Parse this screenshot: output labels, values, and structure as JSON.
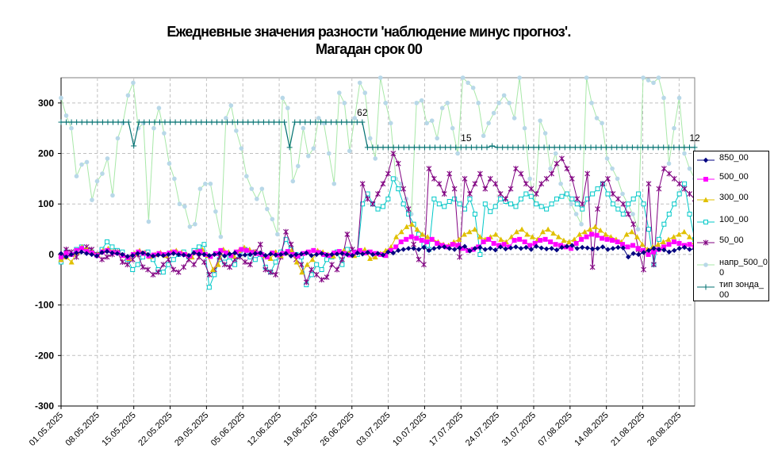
{
  "title_line1": "Ежедневные значения разности 'наблюдение минус прогноз'.",
  "title_line2": "Магадан    срок 00",
  "chart_data": {
    "type": "line",
    "ylim": [
      -300,
      350
    ],
    "yticks": [
      -300,
      -200,
      -100,
      0,
      100,
      200,
      300
    ],
    "grid": true,
    "legend_position": "right",
    "x_start": "2025-05-01",
    "x_end": "2025-08-31",
    "xtick_labels": [
      "01.05.2025",
      "08.05.2025",
      "15.05.2025",
      "22.05.2025",
      "29.05.2025",
      "05.06.2025",
      "12.06.2025",
      "19.06.2025",
      "26.06.2025",
      "03.07.2025",
      "10.07.2025",
      "17.07.2025",
      "24.07.2025",
      "31.07.2025",
      "07.08.2025",
      "14.08.2025",
      "21.08.2025",
      "28.08.2025"
    ],
    "annotations": [
      {
        "text": "62",
        "x": "2025-06-28",
        "y": 262
      },
      {
        "text": "15",
        "x": "2025-07-18",
        "y": 212
      },
      {
        "text": "12",
        "x": "2025-08-31",
        "y": 212
      }
    ],
    "series": [
      {
        "name": "850_00",
        "color": "#000080",
        "marker": "diamond",
        "values": [
          2,
          -5,
          0,
          3,
          5,
          2,
          0,
          -3,
          4,
          6,
          3,
          2,
          0,
          -4,
          -2,
          2,
          3,
          0,
          -3,
          -1,
          -2,
          0,
          2,
          0,
          -1,
          -2,
          3,
          1,
          0,
          -2,
          0,
          2,
          -3,
          1,
          3,
          -2,
          -1,
          0,
          2,
          3,
          -2,
          1,
          -1,
          0,
          2,
          -3,
          0,
          1,
          3,
          -2,
          0,
          2,
          -1,
          0,
          1,
          2,
          0,
          -2,
          3,
          1,
          4,
          0,
          2,
          -1,
          5,
          3,
          8,
          10,
          12,
          12,
          10,
          14,
          8,
          12,
          14,
          15,
          12,
          10,
          13,
          16,
          7,
          12,
          14,
          10,
          12,
          9,
          15,
          11,
          13,
          15,
          12,
          14,
          10,
          16,
          13,
          11,
          12,
          9,
          14,
          16,
          18,
          12,
          14,
          13,
          11,
          12,
          15,
          10,
          12,
          14,
          13,
          -5,
          2,
          0,
          4,
          8,
          12,
          10,
          9,
          5,
          8,
          12,
          14,
          10,
          11
        ]
      },
      {
        "name": "500_00",
        "color": "#FF00FF",
        "marker": "square",
        "values": [
          -5,
          2,
          0,
          8,
          12,
          6,
          3,
          -2,
          5,
          8,
          4,
          3,
          -2,
          -6,
          0,
          5,
          2,
          -3,
          -1,
          2,
          0,
          3,
          5,
          2,
          0,
          -3,
          4,
          6,
          0,
          -4,
          2,
          8,
          3,
          -2,
          5,
          10,
          8,
          4,
          2,
          0,
          -5,
          3,
          -1,
          2,
          6,
          0,
          -3,
          2,
          5,
          8,
          4,
          0,
          -2,
          3,
          6,
          2,
          -1,
          4,
          8,
          3,
          5,
          2,
          0,
          -2,
          8,
          15,
          25,
          30,
          35,
          32,
          28,
          25,
          30,
          22,
          18,
          15,
          20,
          18,
          12,
          8,
          10,
          15,
          25,
          30,
          22,
          18,
          20,
          15,
          28,
          30,
          25,
          18,
          22,
          28,
          30,
          25,
          20,
          18,
          15,
          12,
          22,
          30,
          35,
          40,
          38,
          32,
          30,
          28,
          25,
          20,
          15,
          18,
          12,
          8,
          0,
          5,
          10,
          15,
          20,
          25,
          22,
          18,
          20,
          15
        ]
      },
      {
        "name": "300_00",
        "color": "#E0C000",
        "marker": "triangle",
        "values": [
          -10,
          -5,
          -15,
          5,
          15,
          10,
          5,
          0,
          8,
          12,
          6,
          4,
          -2,
          -8,
          2,
          8,
          4,
          -4,
          0,
          4,
          -2,
          6,
          8,
          4,
          0,
          -5,
          6,
          10,
          -2,
          -30,
          -20,
          10,
          5,
          -3,
          8,
          14,
          10,
          5,
          3,
          -2,
          -8,
          5,
          -2,
          3,
          8,
          -15,
          -35,
          -20,
          -10,
          8,
          5,
          0,
          -3,
          5,
          8,
          3,
          -2,
          6,
          10,
          -8,
          -5,
          2,
          8,
          15,
          35,
          45,
          55,
          60,
          50,
          40,
          35,
          30,
          25,
          20,
          18,
          25,
          30,
          40,
          45,
          50,
          35,
          30,
          35,
          40,
          30,
          25,
          35,
          45,
          50,
          40,
          35,
          30,
          45,
          50,
          42,
          35,
          28,
          25,
          30,
          40,
          45,
          50,
          55,
          48,
          40,
          35,
          30,
          25,
          40,
          45,
          35,
          20,
          10,
          15,
          20,
          25,
          30,
          35,
          40,
          45,
          35,
          25
        ]
      },
      {
        "name": "100_00",
        "color": "#00C8C8",
        "marker": "hollow-square",
        "values": [
          -15,
          5,
          0,
          10,
          15,
          8,
          5,
          0,
          10,
          25,
          15,
          8,
          5,
          -10,
          -30,
          -20,
          -5,
          5,
          -10,
          -30,
          -35,
          -20,
          -10,
          0,
          5,
          -5,
          8,
          15,
          20,
          -65,
          -40,
          -10,
          -15,
          -5,
          -20,
          5,
          10,
          -5,
          -10,
          0,
          -25,
          -35,
          -15,
          5,
          30,
          10,
          0,
          -5,
          -60,
          -40,
          -20,
          -30,
          -10,
          -5,
          5,
          -20,
          10,
          5,
          0,
          100,
          120,
          100,
          90,
          95,
          110,
          150,
          130,
          100,
          80,
          60,
          40,
          20,
          10,
          110,
          100,
          95,
          105,
          110,
          100,
          90,
          110,
          80,
          0,
          100,
          85,
          95,
          110,
          105,
          100,
          95,
          110,
          120,
          115,
          100,
          95,
          90,
          100,
          110,
          115,
          120,
          110,
          100,
          90,
          110,
          120,
          130,
          140,
          120,
          100,
          90,
          80,
          100,
          110,
          120,
          100,
          50,
          -20,
          30,
          60,
          80,
          100,
          120,
          140,
          80,
          30
        ]
      },
      {
        "name": "50_00",
        "color": "#800080",
        "marker": "star",
        "values": [
          -10,
          10,
          5,
          -5,
          8,
          15,
          10,
          0,
          -10,
          -5,
          0,
          5,
          -15,
          -20,
          -10,
          0,
          -25,
          -30,
          -40,
          -35,
          -20,
          -10,
          -30,
          -35,
          -25,
          -10,
          -20,
          -5,
          -15,
          -40,
          -30,
          -5,
          -20,
          -25,
          -10,
          -5,
          -15,
          -20,
          5,
          20,
          -30,
          -35,
          -40,
          -5,
          45,
          20,
          -10,
          -20,
          -55,
          -30,
          -40,
          -50,
          -45,
          -20,
          -30,
          -10,
          40,
          10,
          5,
          140,
          110,
          100,
          120,
          140,
          160,
          200,
          180,
          130,
          90,
          20,
          -10,
          -20,
          170,
          150,
          140,
          120,
          160,
          130,
          -5,
          150,
          120,
          140,
          160,
          130,
          150,
          140,
          120,
          110,
          130,
          170,
          160,
          140,
          130,
          120,
          140,
          150,
          160,
          180,
          190,
          170,
          150,
          110,
          100,
          160,
          -25,
          90,
          140,
          150,
          120,
          110,
          100,
          80,
          60,
          10,
          -30,
          140,
          -20,
          130,
          170,
          160,
          150,
          140,
          130,
          120,
          110
        ]
      },
      {
        "name": "напр_500_00",
        "color": "#B8D8E8",
        "marker": "circle",
        "values": [
          310,
          275,
          250,
          155,
          178,
          183,
          108,
          145,
          160,
          190,
          117,
          230,
          260,
          315,
          340,
          250,
          260,
          65,
          250,
          290,
          240,
          180,
          150,
          100,
          95,
          55,
          60,
          130,
          140,
          140,
          85,
          35,
          270,
          295,
          245,
          210,
          155,
          130,
          110,
          130,
          90,
          70,
          40,
          310,
          290,
          145,
          175,
          250,
          195,
          210,
          270,
          260,
          200,
          140,
          320,
          300,
          205,
          270,
          340,
          320,
          230,
          190,
          350,
          300,
          260,
          150,
          140,
          110,
          80,
          300,
          305,
          260,
          265,
          230,
          290,
          300,
          250,
          200,
          350,
          340,
          330,
          300,
          235,
          260,
          280,
          300,
          315,
          300,
          270,
          350,
          250,
          150,
          100,
          265,
          240,
          170,
          200,
          140,
          120,
          100,
          80,
          60,
          350,
          300,
          270,
          260,
          190,
          170,
          150,
          120,
          100,
          80,
          50,
          350,
          345,
          340,
          350,
          310,
          180,
          250,
          310,
          200,
          170,
          150
        ]
      },
      {
        "name": "тип зонда_00",
        "color": "#007070",
        "marker": "plus",
        "values": [
          262,
          262,
          262,
          262,
          262,
          262,
          262,
          262,
          262,
          262,
          262,
          262,
          262,
          262,
          215,
          262,
          262,
          262,
          262,
          262,
          262,
          262,
          262,
          262,
          262,
          262,
          262,
          262,
          262,
          262,
          262,
          262,
          262,
          262,
          262,
          262,
          262,
          262,
          262,
          262,
          262,
          262,
          262,
          262,
          212,
          262,
          262,
          262,
          262,
          262,
          262,
          262,
          262,
          262,
          262,
          262,
          262,
          262,
          262,
          212,
          212,
          212,
          212,
          212,
          212,
          212,
          212,
          212,
          212,
          212,
          212,
          212,
          212,
          212,
          212,
          212,
          212,
          212,
          212,
          212,
          212,
          212,
          212,
          215,
          212,
          212,
          212,
          212,
          212,
          212,
          212,
          212,
          212,
          212,
          212,
          212,
          212,
          212,
          212,
          212,
          212,
          212,
          212,
          212,
          212,
          212,
          212,
          212,
          212,
          212,
          212,
          212,
          212,
          212,
          212,
          212,
          212,
          212,
          212,
          212,
          212,
          212,
          212
        ]
      }
    ]
  }
}
